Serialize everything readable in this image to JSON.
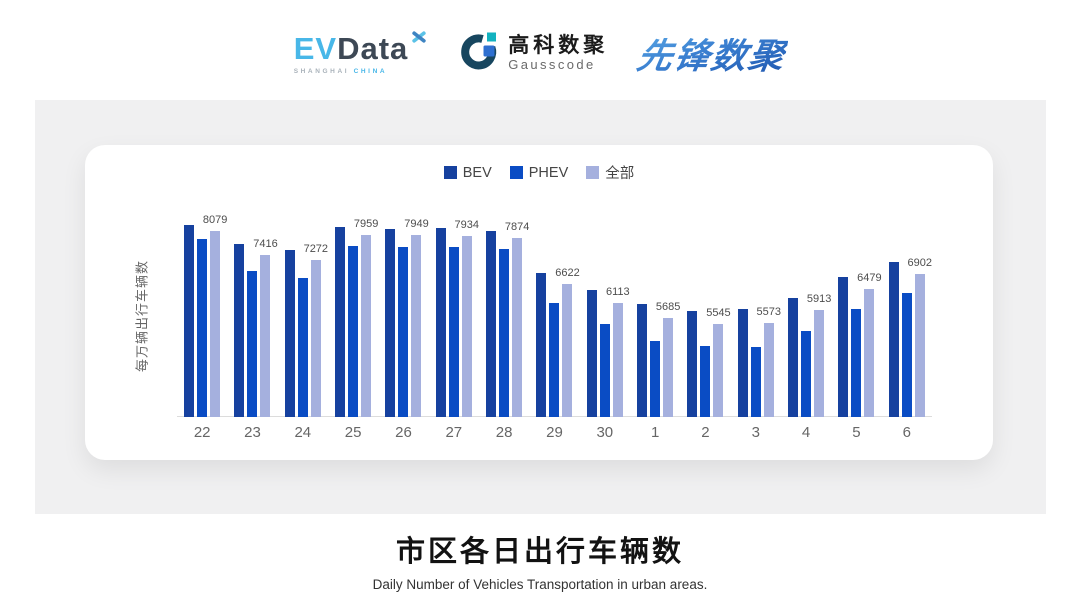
{
  "header": {
    "evdata": {
      "ev": "EV",
      "data": "Data",
      "sub1": "SHANGHAI",
      "sub2": "CHINA"
    },
    "gausscode": {
      "cn": "高科数聚",
      "en": "Gausscode"
    },
    "pioneer": {
      "text": "先锋数聚"
    }
  },
  "chart_data": {
    "type": "bar",
    "title": "",
    "categories": [
      "22",
      "23",
      "24",
      "25",
      "26",
      "27",
      "28",
      "29",
      "30",
      "1",
      "2",
      "3",
      "4",
      "5",
      "6"
    ],
    "series": [
      {
        "name": "BEV",
        "color": "#16419f",
        "values": [
          8240,
          7700,
          7560,
          8170,
          8130,
          8150,
          8060,
          6930,
          6460,
          6080,
          5900,
          5930,
          6250,
          6810,
          7220
        ]
      },
      {
        "name": "PHEV",
        "color": "#0a4cc4",
        "values": [
          7850,
          6980,
          6780,
          7650,
          7640,
          7630,
          7580,
          6100,
          5520,
          5060,
          4930,
          4920,
          5350,
          5930,
          6380
        ]
      },
      {
        "name": "全部",
        "color": "#a5b0de",
        "values": [
          8079,
          7416,
          7272,
          7959,
          7949,
          7934,
          7874,
          6622,
          6113,
          5685,
          5545,
          5573,
          5913,
          6479,
          6902
        ]
      }
    ],
    "data_labels_series": "全部",
    "data_labels": [
      8079,
      7416,
      7272,
      7959,
      7949,
      7934,
      7874,
      6622,
      6113,
      5685,
      5545,
      5573,
      5913,
      6479,
      6902
    ],
    "xlabel": "",
    "ylabel": "每万辆出行车辆数",
    "ylim": [
      3000,
      8500
    ],
    "grid": false,
    "legend_position": "top-center",
    "axis_line_color": "#dcdcdc"
  },
  "footer": {
    "title": "市区各日出行车辆数",
    "subtitle": "Daily Number of Vehicles Transportation in urban areas."
  }
}
